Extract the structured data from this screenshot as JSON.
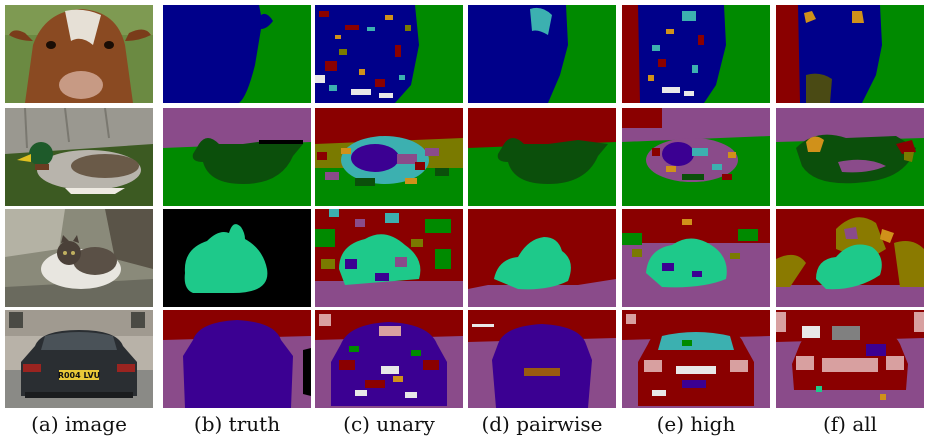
{
  "columns": [
    {
      "key": "image",
      "caption": "(a) image"
    },
    {
      "key": "truth",
      "caption": "(b) truth"
    },
    {
      "key": "unary",
      "caption": "(c) unary"
    },
    {
      "key": "pairwise",
      "caption": "(d) pairwise"
    },
    {
      "key": "high",
      "caption": "(e) high"
    },
    {
      "key": "all",
      "caption": "(f) all"
    }
  ],
  "rows": [
    {
      "subject": "cow"
    },
    {
      "subject": "duck"
    },
    {
      "subject": "cat"
    },
    {
      "subject": "car"
    }
  ],
  "license_plate_text": "R004 LVU",
  "palette": {
    "cow_blue": "#00008a",
    "grass_green": "#008a00",
    "duck_dark_green": "#0b4f0b",
    "cat_teal": "#1ec98a",
    "car_purple": "#3b0092",
    "road_purple": "#8a4b8a",
    "background_red": "#8a0000",
    "void_black": "#000000",
    "noise_cyan": "#3cb0b0",
    "noise_orange": "#d0911a",
    "noise_olive": "#7a7a00",
    "noise_pink": "#d8a0a0",
    "noise_gray": "#808080"
  }
}
